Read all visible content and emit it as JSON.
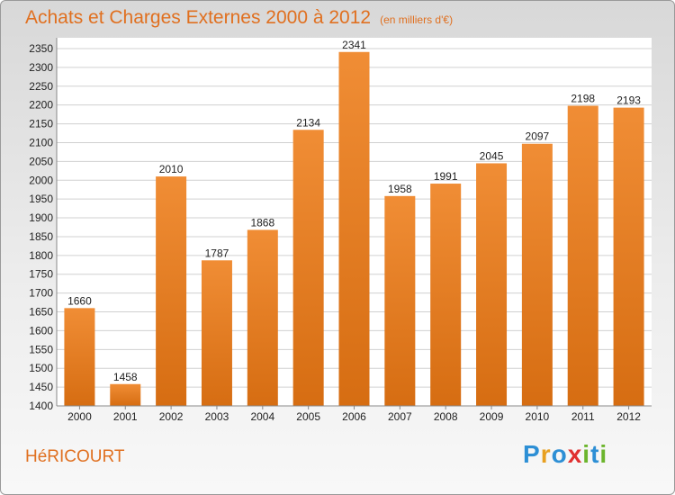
{
  "title": "Achats et Charges Externes 2000 à 2012",
  "subtitle": "(en milliers d'€)",
  "location": "HéRICOURT",
  "logo": {
    "letters": [
      {
        "ch": "P",
        "color": "#2d8fd5"
      },
      {
        "ch": "r",
        "color": "#e8a020"
      },
      {
        "ch": "o",
        "color": "#2d8fd5"
      },
      {
        "ch": "x",
        "color": "#e03030"
      },
      {
        "ch": "i",
        "color": "#6cb52d"
      },
      {
        "ch": "t",
        "color": "#2d8fd5"
      },
      {
        "ch": "i",
        "color": "#6cb52d"
      }
    ]
  },
  "colors": {
    "bar": "#f08d35",
    "bar_dark": "#d66d12",
    "title": "#e07020"
  },
  "chart_data": {
    "type": "bar",
    "title": "Achats et Charges Externes 2000 à 2012",
    "subtitle": "(en milliers d'€)",
    "categories": [
      "2000",
      "2001",
      "2002",
      "2003",
      "2004",
      "2005",
      "2006",
      "2007",
      "2008",
      "2009",
      "2010",
      "2011",
      "2012"
    ],
    "values": [
      1660,
      1458,
      2010,
      1787,
      1868,
      2134,
      2341,
      1958,
      1991,
      2045,
      2097,
      2198,
      2193
    ],
    "ylim": [
      1400,
      2350
    ],
    "yticks": [
      1400,
      1450,
      1500,
      1550,
      1600,
      1650,
      1700,
      1750,
      1800,
      1850,
      1900,
      1950,
      2000,
      2050,
      2100,
      2150,
      2200,
      2250,
      2300,
      2350
    ],
    "grid": true,
    "xlabel": "",
    "ylabel": ""
  }
}
